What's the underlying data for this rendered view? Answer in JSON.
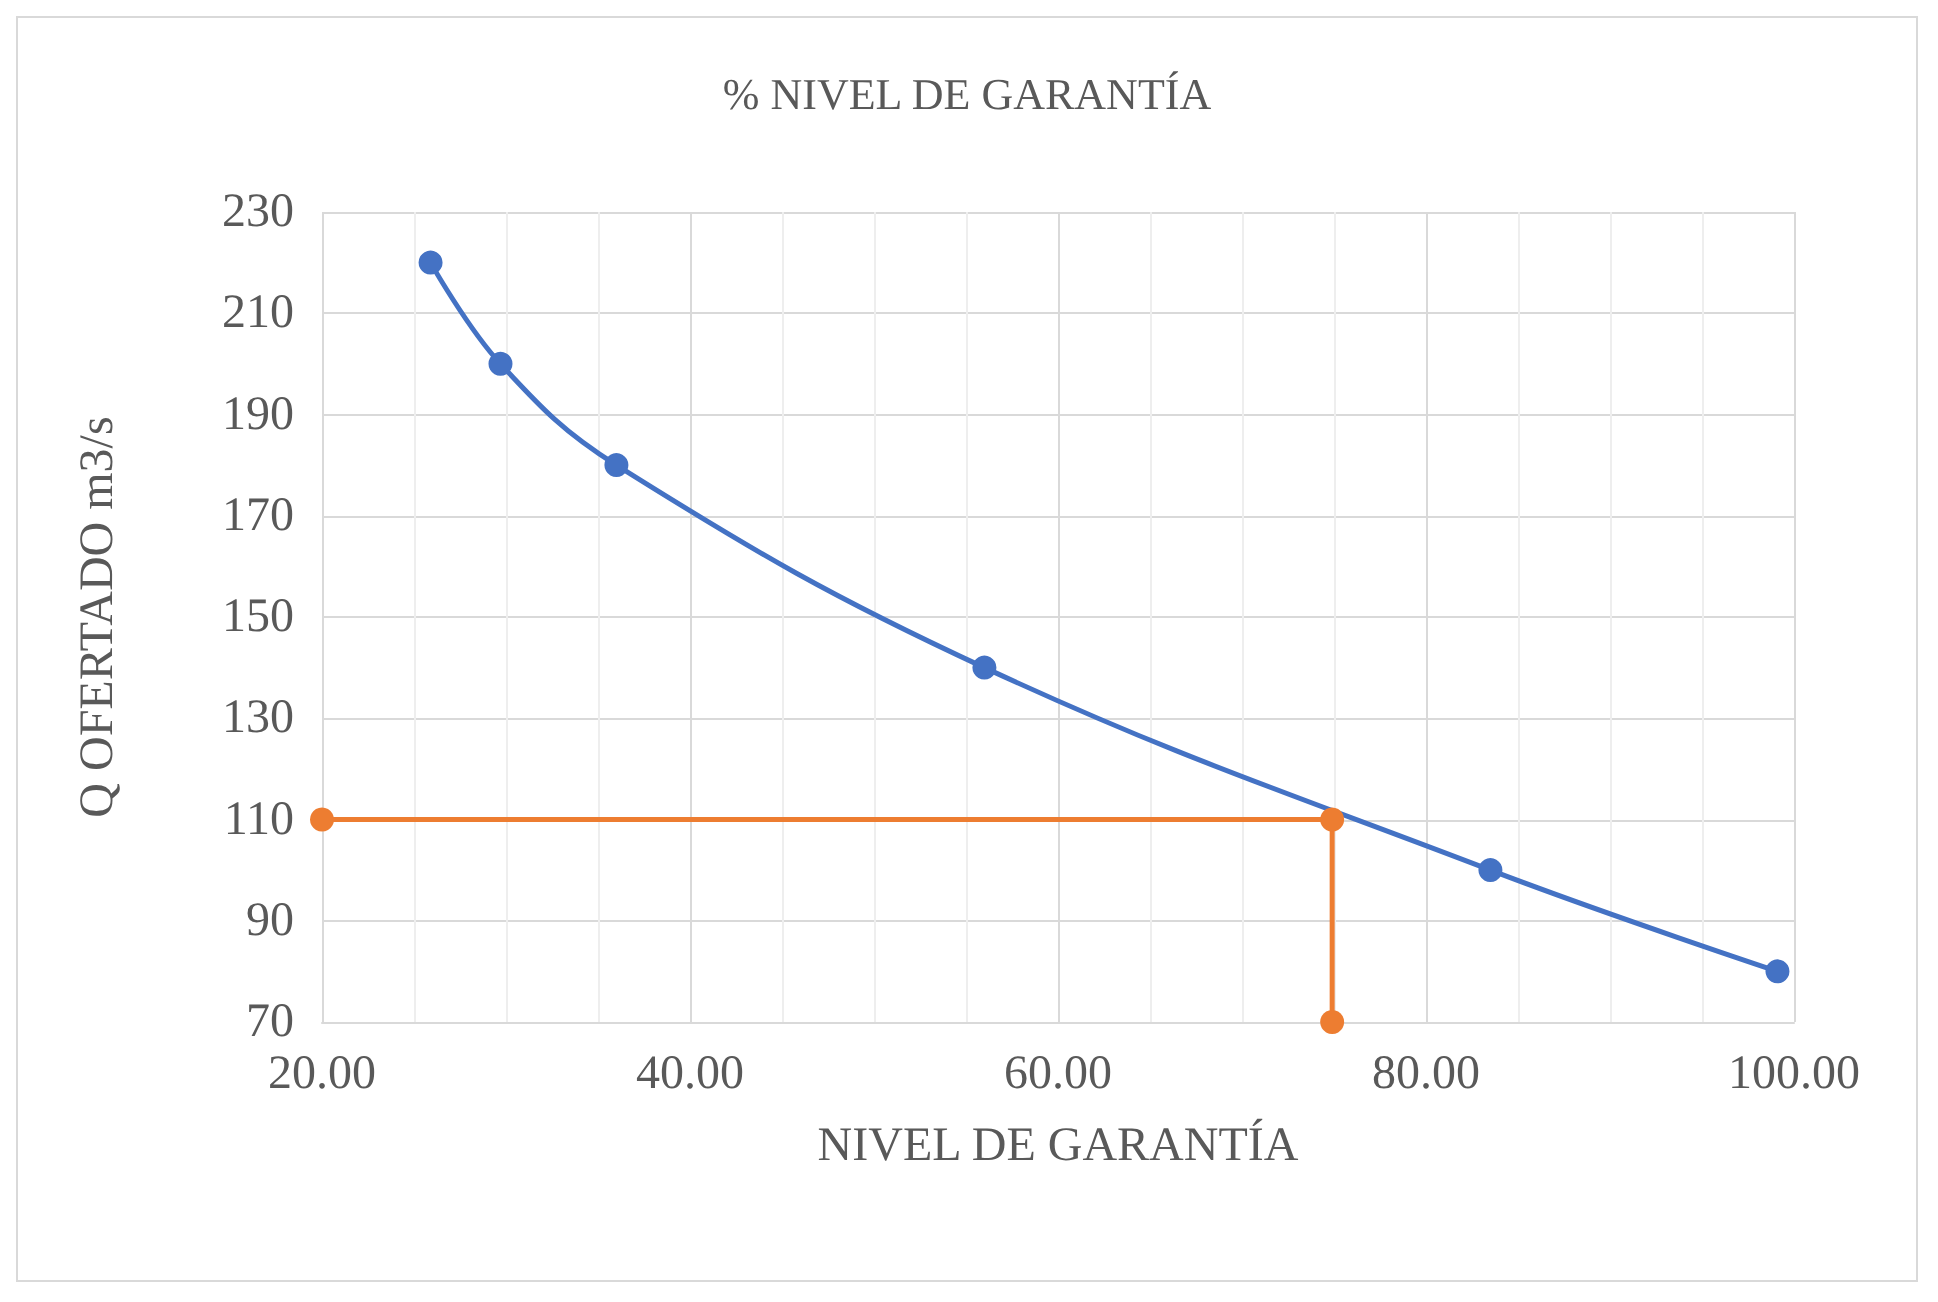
{
  "chart_data": {
    "type": "line",
    "title": "% NIVEL DE GARANTÍA",
    "xlabel": "NIVEL DE GARANTÍA",
    "ylabel": "Q OFERTADO m3/s",
    "series": [
      {
        "color": "#4472c4",
        "x": [
          25.9,
          29.7,
          36.0,
          56.0,
          83.5,
          99.1
        ],
        "values": [
          220,
          200,
          180,
          140,
          100,
          80
        ]
      },
      {
        "color": "#ed7d31",
        "x": [
          20,
          74.9,
          74.9
        ],
        "values": [
          110,
          110,
          70
        ]
      }
    ],
    "xlim": [
      20,
      100
    ],
    "xticks": [
      {
        "value": 20,
        "label": "20.00"
      },
      {
        "value": 40,
        "label": "40.00"
      },
      {
        "value": 60,
        "label": "60.00"
      },
      {
        "value": 80,
        "label": "80.00"
      },
      {
        "value": 100,
        "label": "100.00"
      }
    ],
    "ylim": [
      70,
      230
    ],
    "yticks": [
      70,
      90,
      110,
      130,
      150,
      170,
      190,
      210,
      230
    ],
    "grid": true,
    "marker": "circle",
    "line_style": "solid"
  }
}
